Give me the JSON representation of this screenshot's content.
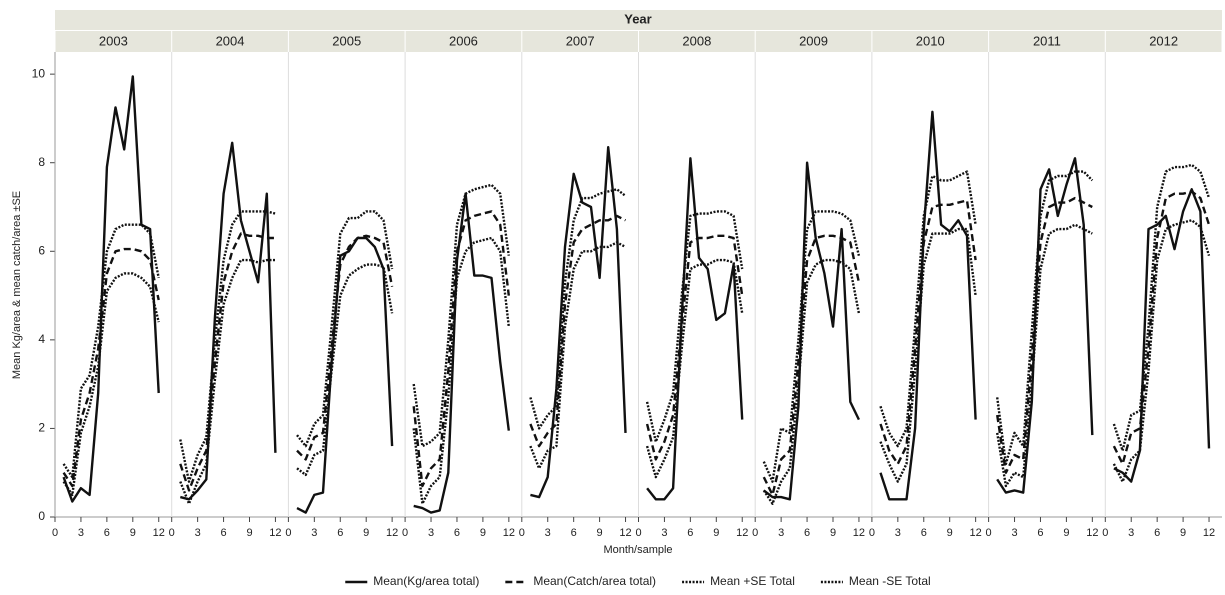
{
  "chart_data": {
    "type": "line",
    "title": "Year",
    "xlabel": "Month/sample",
    "ylabel": "Mean Kg/area & mean catch/area ±SE",
    "panels": [
      "2003",
      "2004",
      "2005",
      "2006",
      "2007",
      "2008",
      "2009",
      "2010",
      "2011",
      "2012"
    ],
    "x": [
      1,
      2,
      3,
      4,
      5,
      6,
      7,
      8,
      9,
      10,
      11,
      12
    ],
    "xlim": [
      0,
      13.5
    ],
    "xticks": [
      0,
      3,
      6,
      9,
      12
    ],
    "ylim": [
      0,
      10.5
    ],
    "yticks": [
      0,
      2,
      4,
      6,
      8,
      10
    ],
    "legend": "bottom",
    "series": [
      {
        "name": "Mean(Kg/area total)",
        "color": "#111111",
        "dash": "solid",
        "values": [
          [
            0.9,
            0.35,
            0.65,
            0.5,
            2.8,
            7.9,
            9.25,
            8.3,
            9.95,
            6.6,
            6.5,
            2.8
          ],
          [
            0.45,
            0.4,
            0.6,
            0.85,
            4.5,
            7.3,
            8.45,
            6.7,
            6.0,
            5.3,
            7.3,
            1.45
          ],
          [
            0.2,
            0.1,
            0.5,
            0.55,
            3.5,
            5.9,
            6.0,
            6.3,
            6.3,
            6.1,
            5.6,
            1.6
          ],
          [
            0.25,
            0.2,
            0.1,
            0.15,
            1.0,
            5.8,
            7.3,
            5.45,
            5.45,
            5.4,
            3.5,
            1.95
          ],
          [
            0.5,
            0.45,
            0.9,
            2.9,
            6.1,
            7.75,
            7.1,
            7.0,
            5.4,
            8.35,
            6.5,
            1.9
          ],
          [
            0.65,
            0.4,
            0.4,
            0.65,
            4.5,
            8.1,
            5.85,
            5.6,
            4.45,
            4.6,
            5.7,
            2.2
          ],
          [
            0.6,
            0.45,
            0.45,
            0.4,
            2.5,
            8.0,
            6.3,
            5.5,
            4.3,
            6.5,
            2.6,
            2.2
          ],
          [
            1.0,
            0.4,
            0.4,
            0.4,
            2.0,
            6.5,
            9.15,
            6.6,
            6.45,
            6.7,
            6.35,
            2.2
          ],
          [
            0.85,
            0.55,
            0.6,
            0.55,
            2.6,
            7.4,
            7.85,
            6.8,
            7.5,
            8.1,
            6.6,
            1.85
          ],
          [
            1.1,
            1.0,
            0.8,
            1.5,
            6.5,
            6.6,
            6.8,
            6.05,
            6.9,
            7.4,
            6.9,
            1.55
          ]
        ]
      },
      {
        "name": "Mean(Catch/area total)",
        "color": "#111111",
        "dash": "dashed",
        "values": [
          [
            1.0,
            0.7,
            2.2,
            2.8,
            3.8,
            5.5,
            6.0,
            6.05,
            6.05,
            6.0,
            5.8,
            4.9
          ],
          [
            1.2,
            0.6,
            1.1,
            1.5,
            3.5,
            5.3,
            6.0,
            6.4,
            6.35,
            6.35,
            6.3,
            6.3
          ],
          [
            1.5,
            1.3,
            1.8,
            1.9,
            3.8,
            5.7,
            6.1,
            6.3,
            6.35,
            6.3,
            6.2,
            5.2
          ],
          [
            2.5,
            0.7,
            1.1,
            1.3,
            3.3,
            6.0,
            6.7,
            6.8,
            6.85,
            6.9,
            6.6,
            5.0
          ],
          [
            2.1,
            1.6,
            1.9,
            2.1,
            4.8,
            6.2,
            6.5,
            6.6,
            6.7,
            6.7,
            6.8,
            6.7
          ],
          [
            2.1,
            1.3,
            1.7,
            2.3,
            4.3,
            6.2,
            6.3,
            6.3,
            6.35,
            6.35,
            6.3,
            5.0
          ],
          [
            0.9,
            0.5,
            1.3,
            1.5,
            3.5,
            5.8,
            6.3,
            6.35,
            6.35,
            6.3,
            6.2,
            5.3
          ],
          [
            2.1,
            1.5,
            1.2,
            1.6,
            3.8,
            6.2,
            7.0,
            7.05,
            7.05,
            7.1,
            7.15,
            5.8
          ],
          [
            2.3,
            1.0,
            1.4,
            1.3,
            3.6,
            6.2,
            7.0,
            7.1,
            7.1,
            7.2,
            7.1,
            7.0
          ],
          [
            1.6,
            1.2,
            1.9,
            2.0,
            3.8,
            6.3,
            7.2,
            7.3,
            7.3,
            7.35,
            7.2,
            6.6
          ]
        ]
      },
      {
        "name": "Mean +SE Total",
        "color": "#111111",
        "dash": "dotted",
        "values": [
          [
            1.2,
            0.9,
            2.9,
            3.2,
            4.3,
            6.0,
            6.5,
            6.6,
            6.6,
            6.6,
            6.4,
            5.4
          ],
          [
            1.75,
            0.8,
            1.4,
            1.8,
            4.0,
            5.8,
            6.6,
            6.9,
            6.9,
            6.9,
            6.9,
            6.85
          ],
          [
            1.85,
            1.6,
            2.1,
            2.3,
            4.3,
            6.4,
            6.75,
            6.75,
            6.9,
            6.9,
            6.7,
            5.6
          ],
          [
            3.0,
            1.6,
            1.7,
            1.9,
            4.0,
            6.6,
            7.3,
            7.4,
            7.45,
            7.5,
            7.3,
            5.9
          ],
          [
            2.7,
            2.0,
            2.3,
            2.5,
            5.3,
            6.7,
            7.2,
            7.2,
            7.3,
            7.35,
            7.4,
            7.25
          ],
          [
            2.6,
            1.7,
            2.2,
            2.8,
            5.0,
            6.8,
            6.85,
            6.85,
            6.9,
            6.9,
            6.8,
            5.6
          ],
          [
            1.25,
            0.8,
            2.0,
            1.9,
            4.0,
            6.5,
            6.9,
            6.9,
            6.9,
            6.85,
            6.7,
            5.9
          ],
          [
            2.5,
            1.9,
            1.6,
            2.0,
            4.3,
            6.8,
            7.7,
            7.6,
            7.6,
            7.7,
            7.8,
            6.6
          ],
          [
            2.7,
            1.2,
            1.9,
            1.6,
            4.2,
            6.8,
            7.6,
            7.7,
            7.7,
            7.8,
            7.8,
            7.6
          ],
          [
            2.1,
            1.5,
            2.3,
            2.4,
            4.3,
            7.0,
            7.8,
            7.9,
            7.9,
            7.95,
            7.8,
            7.2
          ]
        ]
      },
      {
        "name": "Mean -SE Total",
        "color": "#111111",
        "dash": "dotted",
        "values": [
          [
            0.8,
            0.5,
            1.9,
            2.5,
            3.4,
            5.1,
            5.4,
            5.5,
            5.5,
            5.4,
            5.2,
            4.4
          ],
          [
            0.8,
            0.3,
            0.8,
            1.2,
            3.1,
            4.8,
            5.4,
            5.8,
            5.8,
            5.75,
            5.8,
            5.8
          ],
          [
            1.1,
            0.95,
            1.4,
            1.5,
            3.3,
            5.0,
            5.45,
            5.6,
            5.7,
            5.7,
            5.65,
            4.6
          ],
          [
            2.0,
            0.3,
            0.7,
            0.9,
            2.7,
            5.4,
            6.0,
            6.2,
            6.25,
            6.3,
            6.0,
            4.3
          ],
          [
            1.6,
            1.1,
            1.5,
            1.6,
            4.3,
            5.6,
            6.0,
            6.0,
            6.1,
            6.1,
            6.2,
            6.1
          ],
          [
            1.6,
            0.9,
            1.3,
            1.8,
            3.8,
            5.6,
            5.7,
            5.7,
            5.8,
            5.8,
            5.75,
            4.6
          ],
          [
            0.6,
            0.3,
            0.8,
            1.1,
            3.0,
            5.3,
            5.7,
            5.8,
            5.8,
            5.75,
            5.6,
            4.6
          ],
          [
            1.7,
            1.2,
            0.8,
            1.2,
            3.3,
            5.7,
            6.4,
            6.4,
            6.4,
            6.5,
            6.5,
            5.0
          ],
          [
            1.9,
            0.7,
            1.0,
            0.9,
            3.0,
            5.6,
            6.4,
            6.5,
            6.5,
            6.6,
            6.5,
            6.4
          ],
          [
            1.2,
            0.8,
            1.3,
            1.5,
            3.3,
            5.8,
            6.5,
            6.6,
            6.65,
            6.7,
            6.55,
            5.9
          ]
        ]
      }
    ]
  }
}
